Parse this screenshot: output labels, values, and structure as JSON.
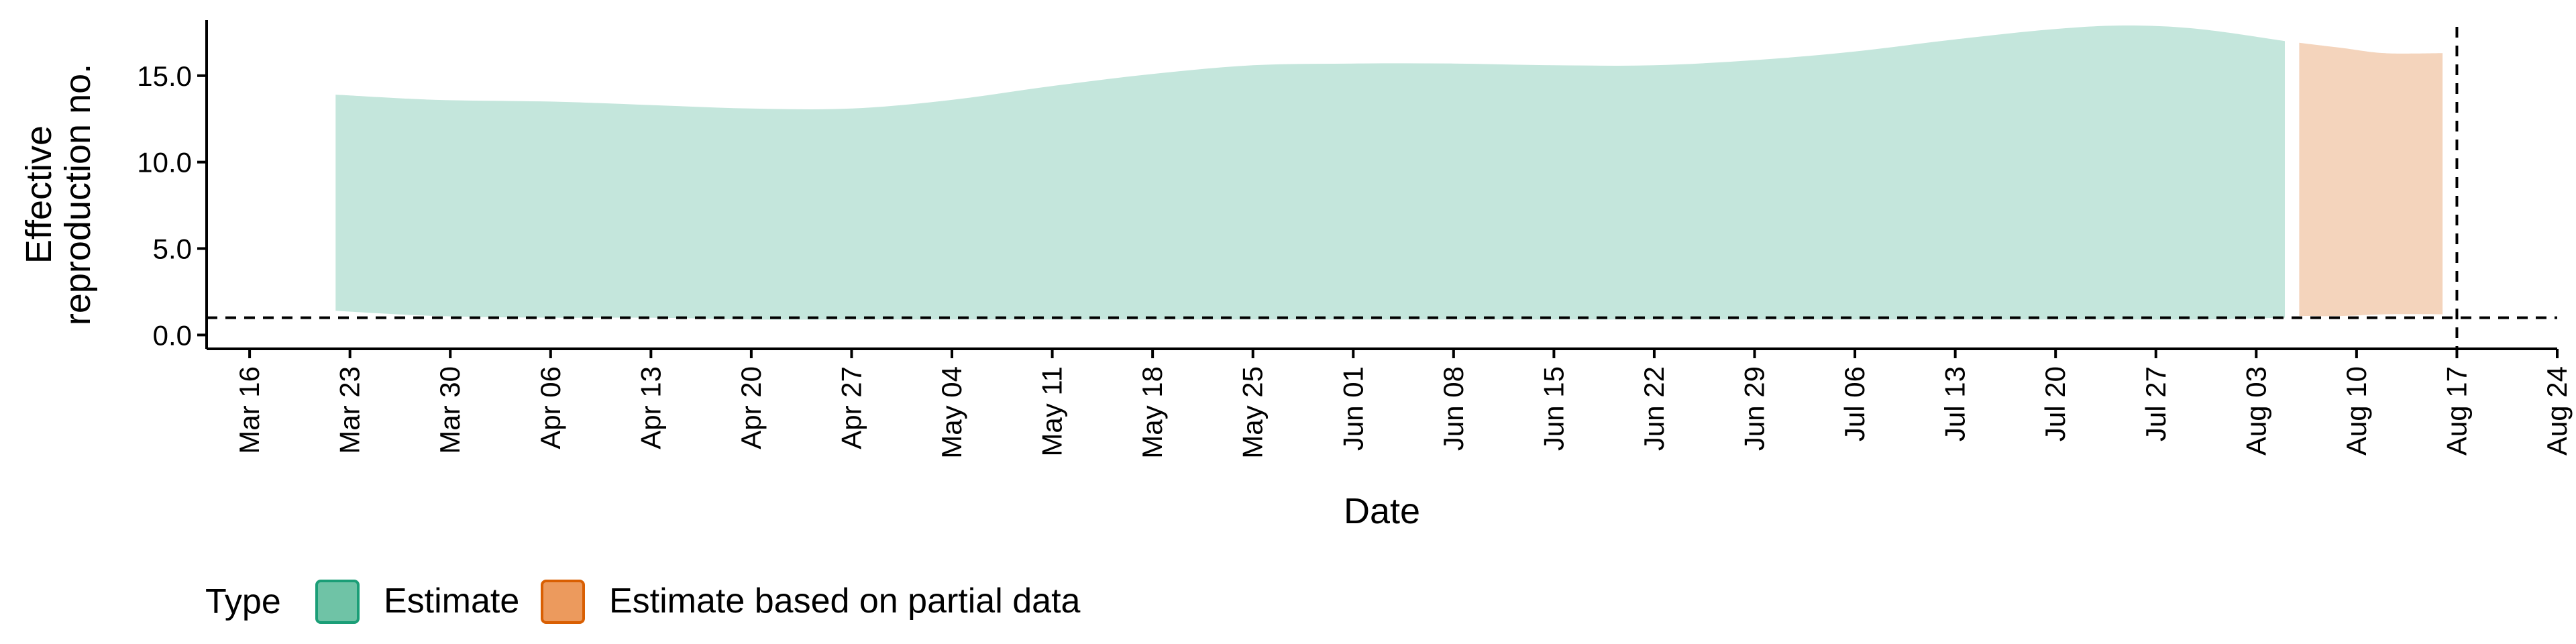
{
  "chart_data": {
    "type": "area",
    "xlabel": "Date",
    "ylabel_lines": [
      "Effective",
      "reproduction no."
    ],
    "x_range": [
      "2020-03-13",
      "2020-08-24"
    ],
    "ylim": [
      -0.8,
      18.6
    ],
    "grid": false,
    "x_ticks": [
      {
        "date": "2020-03-16",
        "label": "Mar 16"
      },
      {
        "date": "2020-03-23",
        "label": "Mar 23"
      },
      {
        "date": "2020-03-30",
        "label": "Mar 30"
      },
      {
        "date": "2020-04-06",
        "label": "Apr 06"
      },
      {
        "date": "2020-04-13",
        "label": "Apr 13"
      },
      {
        "date": "2020-04-20",
        "label": "Apr 20"
      },
      {
        "date": "2020-04-27",
        "label": "Apr 27"
      },
      {
        "date": "2020-05-04",
        "label": "May 04"
      },
      {
        "date": "2020-05-11",
        "label": "May 11"
      },
      {
        "date": "2020-05-18",
        "label": "May 18"
      },
      {
        "date": "2020-05-25",
        "label": "May 25"
      },
      {
        "date": "2020-06-01",
        "label": "Jun 01"
      },
      {
        "date": "2020-06-08",
        "label": "Jun 08"
      },
      {
        "date": "2020-06-15",
        "label": "Jun 15"
      },
      {
        "date": "2020-06-22",
        "label": "Jun 22"
      },
      {
        "date": "2020-06-29",
        "label": "Jun 29"
      },
      {
        "date": "2020-07-06",
        "label": "Jul 06"
      },
      {
        "date": "2020-07-13",
        "label": "Jul 13"
      },
      {
        "date": "2020-07-20",
        "label": "Jul 20"
      },
      {
        "date": "2020-07-27",
        "label": "Jul 27"
      },
      {
        "date": "2020-08-03",
        "label": "Aug 03"
      },
      {
        "date": "2020-08-10",
        "label": "Aug 10"
      },
      {
        "date": "2020-08-17",
        "label": "Aug 17"
      },
      {
        "date": "2020-08-24",
        "label": "Aug 24"
      }
    ],
    "y_ticks": [
      {
        "value": 0,
        "label": "0.0"
      },
      {
        "value": 5,
        "label": "5.0"
      },
      {
        "value": 10,
        "label": "10.0"
      },
      {
        "value": 15,
        "label": "15.0"
      }
    ],
    "reference_lines": {
      "horizontal_y": 1,
      "vertical_date": "2020-08-17"
    },
    "legend": {
      "title": "Type",
      "position": "bottom-left"
    },
    "series": [
      {
        "name": "Estimate",
        "fill_color": "#c4e6dc",
        "key_fill": "#6fc3a6",
        "key_border": "#1b9e77",
        "points": [
          {
            "date": "2020-03-22",
            "lower": 1.4,
            "upper": 13.9
          },
          {
            "date": "2020-03-29",
            "lower": 1.1,
            "upper": 13.6
          },
          {
            "date": "2020-04-06",
            "lower": 1.0,
            "upper": 13.5
          },
          {
            "date": "2020-04-13",
            "lower": 1.0,
            "upper": 13.3
          },
          {
            "date": "2020-04-20",
            "lower": 0.9,
            "upper": 13.1
          },
          {
            "date": "2020-04-27",
            "lower": 0.9,
            "upper": 13.1
          },
          {
            "date": "2020-05-04",
            "lower": 0.9,
            "upper": 13.6
          },
          {
            "date": "2020-05-11",
            "lower": 0.9,
            "upper": 14.4
          },
          {
            "date": "2020-05-18",
            "lower": 0.9,
            "upper": 15.1
          },
          {
            "date": "2020-05-25",
            "lower": 0.9,
            "upper": 15.6
          },
          {
            "date": "2020-06-01",
            "lower": 0.9,
            "upper": 15.7
          },
          {
            "date": "2020-06-08",
            "lower": 0.9,
            "upper": 15.7
          },
          {
            "date": "2020-06-15",
            "lower": 0.9,
            "upper": 15.6
          },
          {
            "date": "2020-06-22",
            "lower": 0.9,
            "upper": 15.6
          },
          {
            "date": "2020-06-29",
            "lower": 0.9,
            "upper": 15.9
          },
          {
            "date": "2020-07-06",
            "lower": 0.9,
            "upper": 16.4
          },
          {
            "date": "2020-07-13",
            "lower": 0.9,
            "upper": 17.1
          },
          {
            "date": "2020-07-20",
            "lower": 0.9,
            "upper": 17.7
          },
          {
            "date": "2020-07-25",
            "lower": 0.9,
            "upper": 17.9
          },
          {
            "date": "2020-07-30",
            "lower": 0.9,
            "upper": 17.7
          },
          {
            "date": "2020-08-05",
            "lower": 1.0,
            "upper": 17.0
          }
        ]
      },
      {
        "name": "Estimate based on partial data",
        "fill_color": "#f4d4bc",
        "key_fill": "#ec9a5d",
        "key_border": "#d95f02",
        "points": [
          {
            "date": "2020-08-06",
            "lower": 1.1,
            "upper": 16.9
          },
          {
            "date": "2020-08-09",
            "lower": 1.1,
            "upper": 16.6
          },
          {
            "date": "2020-08-12",
            "lower": 1.2,
            "upper": 16.3
          },
          {
            "date": "2020-08-16",
            "lower": 1.2,
            "upper": 16.3
          }
        ]
      }
    ]
  }
}
